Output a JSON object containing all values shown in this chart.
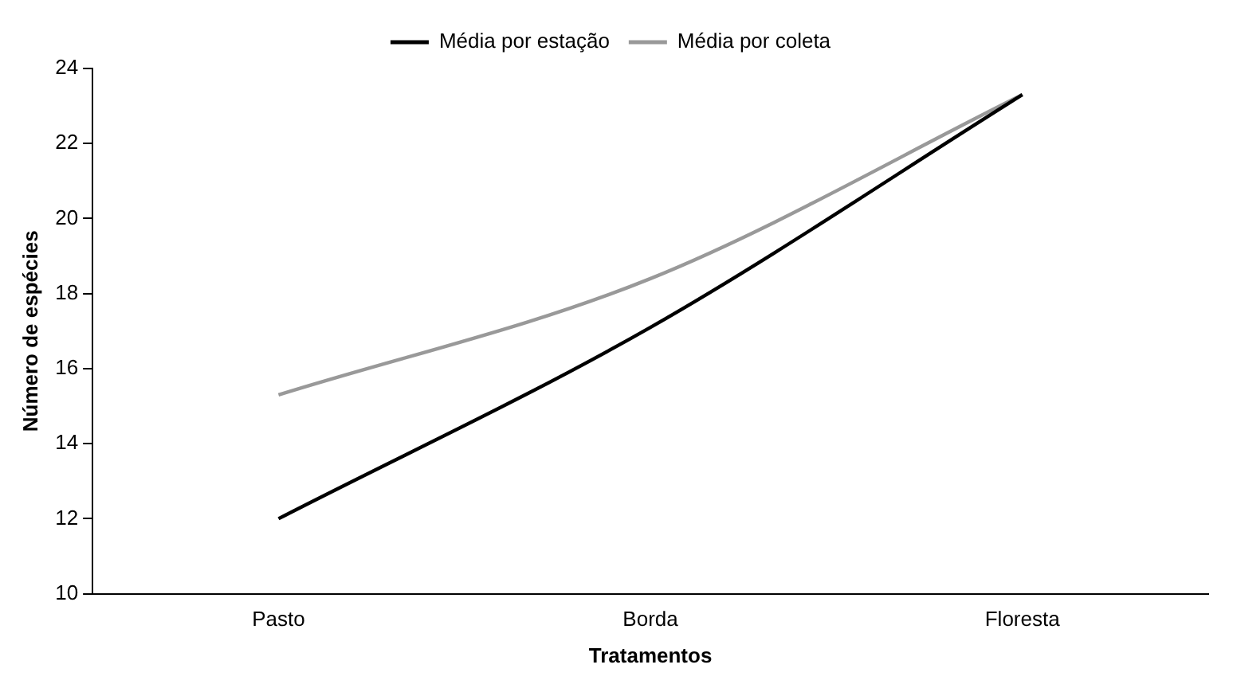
{
  "chart_data": {
    "type": "line",
    "xlabel": "Tratamentos",
    "ylabel": "Número de espécies",
    "categories": [
      "Pasto",
      "Borda",
      "Floresta"
    ],
    "series": [
      {
        "name": "Média por estação",
        "color": "#000000",
        "values": [
          12.0,
          17.1,
          23.3
        ]
      },
      {
        "name": "Média por coleta",
        "color": "#999999",
        "values": [
          15.3,
          18.4,
          23.3
        ]
      }
    ],
    "ylim": [
      10,
      24
    ],
    "yticks": [
      10,
      12,
      14,
      16,
      18,
      20,
      22,
      24
    ],
    "grid": false,
    "legend": "top",
    "marker": "none",
    "line_style": "solid"
  }
}
